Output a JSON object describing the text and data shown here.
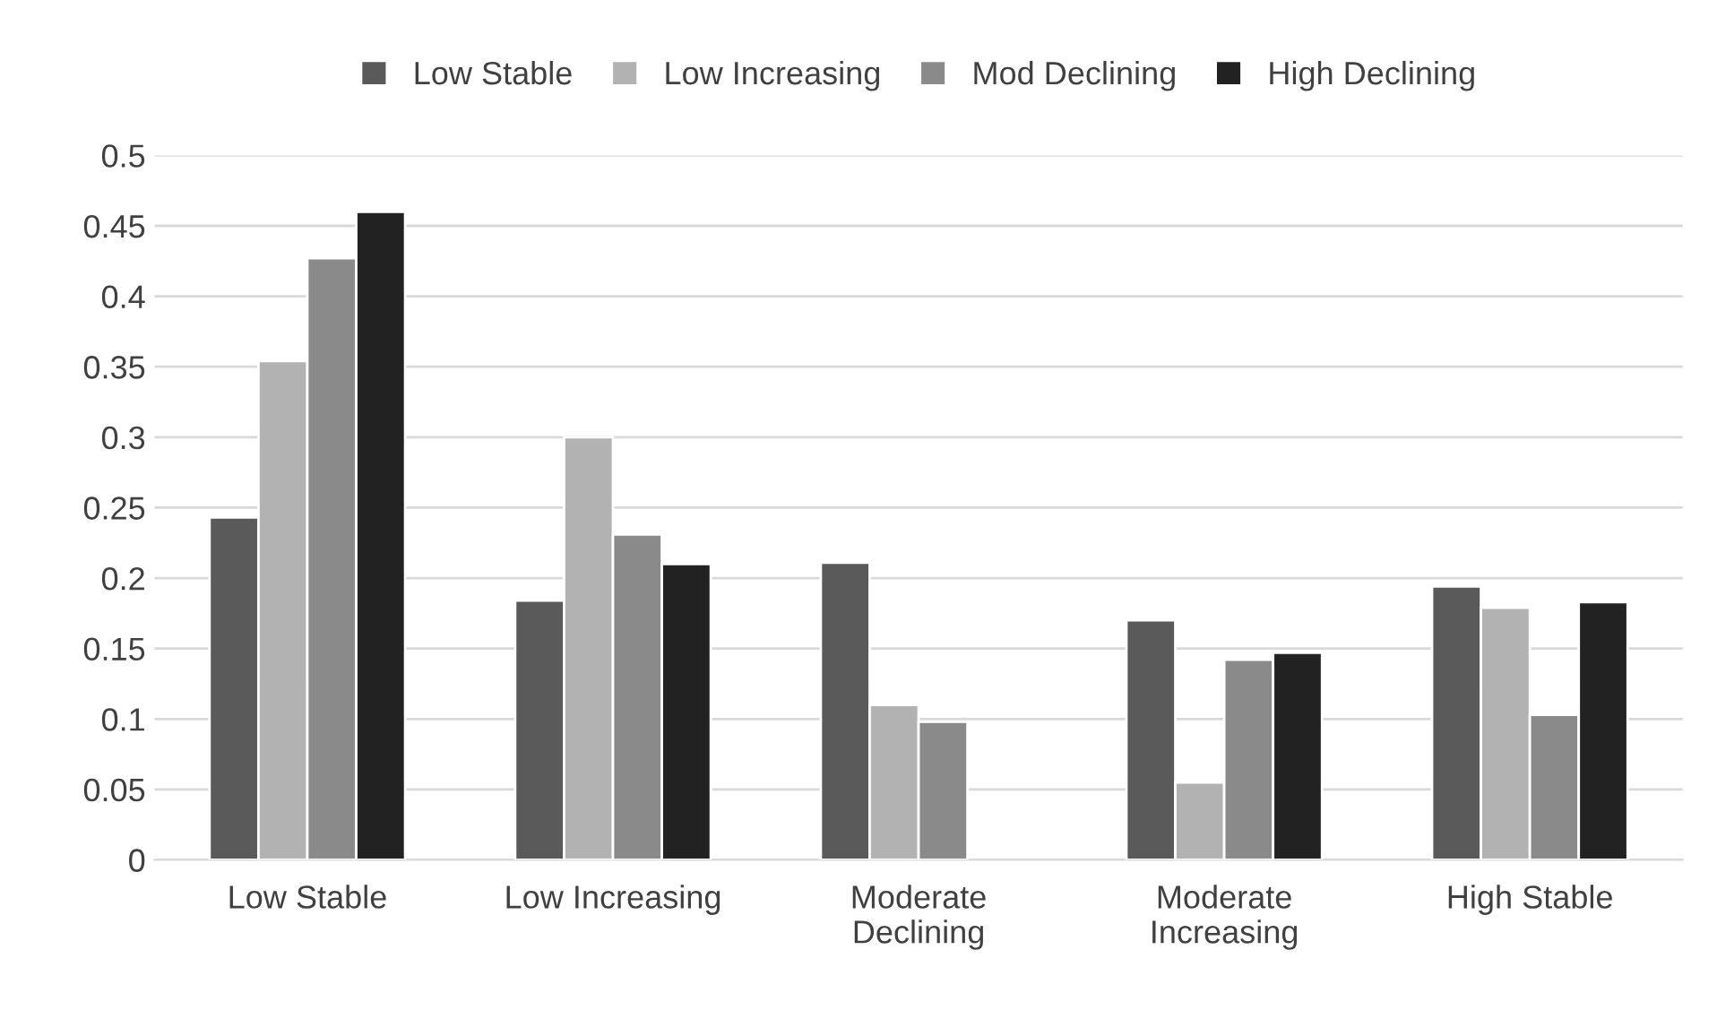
{
  "chart_data": {
    "type": "bar",
    "categories": [
      "Low Stable",
      "Low Increasing",
      "Moderate\nDeclining",
      "Moderate\nIncreasing",
      "High Stable"
    ],
    "series": [
      {
        "name": "Low Stable",
        "color": "#5a5a5a",
        "values": [
          0.243,
          0.184,
          0.211,
          0.17,
          0.194
        ]
      },
      {
        "name": "Low Increasing",
        "color": "#b2b2b2",
        "values": [
          0.354,
          0.3,
          0.11,
          0.055,
          0.179
        ]
      },
      {
        "name": "Mod Declining",
        "color": "#8a8a8a",
        "values": [
          0.427,
          0.231,
          0.098,
          0.142,
          0.103
        ]
      },
      {
        "name": "High Declining",
        "color": "#222222",
        "values": [
          0.46,
          0.21,
          null,
          0.147,
          0.183
        ]
      }
    ],
    "ylim": [
      0,
      0.5
    ],
    "yticks": [
      0,
      0.05,
      0.1,
      0.15,
      0.2,
      0.25,
      0.3,
      0.35,
      0.4,
      0.45,
      0.5
    ],
    "grid": "y",
    "legend": "top"
  }
}
